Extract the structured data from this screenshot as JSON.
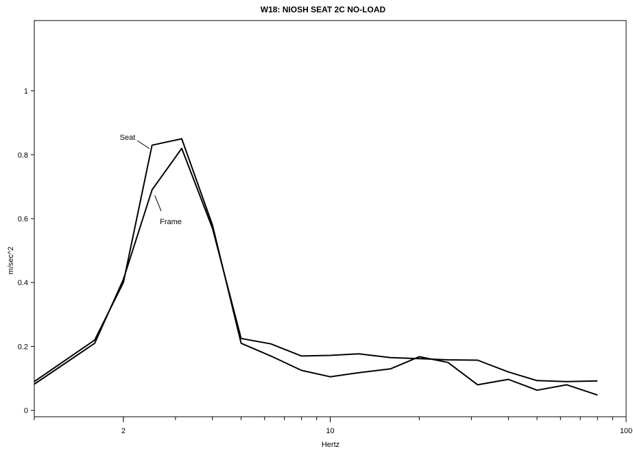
{
  "chart_data": {
    "type": "line",
    "title": "W18: NIOSH SEAT 2C NO-LOAD",
    "xlabel": "Hertz",
    "ylabel": "m/sec^2",
    "x_scale": "log",
    "xlim": [
      1.0,
      100
    ],
    "ylim": [
      -0.02,
      1.22
    ],
    "x_ticks": [
      {
        "value": 2,
        "label": "2"
      },
      {
        "value": 10,
        "label": "10"
      },
      {
        "value": 100,
        "label": "100"
      }
    ],
    "y_ticks": [
      {
        "value": 0,
        "label": "0"
      },
      {
        "value": 0.2,
        "label": "0.2"
      },
      {
        "value": 0.4,
        "label": "0.4"
      },
      {
        "value": 0.6,
        "label": "0.6"
      },
      {
        "value": 0.8,
        "label": "0.8"
      },
      {
        "value": 1,
        "label": "1"
      }
    ],
    "grid": false,
    "series": [
      {
        "name": "Seat",
        "color": "#000000",
        "x": [
          1.0,
          1.6,
          2.0,
          2.5,
          3.15,
          4.0,
          5.0,
          6.3,
          8.0,
          10.0,
          12.5,
          16.0,
          20.0,
          25.0,
          31.5,
          40.0,
          50.0,
          63.0,
          80.0
        ],
        "y": [
          0.09,
          0.22,
          0.4,
          0.83,
          0.85,
          0.58,
          0.21,
          0.17,
          0.125,
          0.105,
          0.118,
          0.13,
          0.168,
          0.15,
          0.08,
          0.097,
          0.063,
          0.08,
          0.048
        ]
      },
      {
        "name": "Frame",
        "color": "#000000",
        "x": [
          1.0,
          1.6,
          2.0,
          2.5,
          3.15,
          4.0,
          5.0,
          6.3,
          8.0,
          10.0,
          12.5,
          16.0,
          20.0,
          25.0,
          31.5,
          40.0,
          50.0,
          63.0,
          80.0
        ],
        "y": [
          0.082,
          0.21,
          0.41,
          0.69,
          0.82,
          0.57,
          0.225,
          0.208,
          0.17,
          0.172,
          0.177,
          0.165,
          0.162,
          0.158,
          0.157,
          0.12,
          0.093,
          0.09,
          0.092
        ]
      }
    ],
    "annotations": [
      {
        "text": "Seat",
        "series": "Seat",
        "at_x": 2.5
      },
      {
        "text": "Frame",
        "series": "Frame",
        "at_x": 2.5
      }
    ]
  }
}
